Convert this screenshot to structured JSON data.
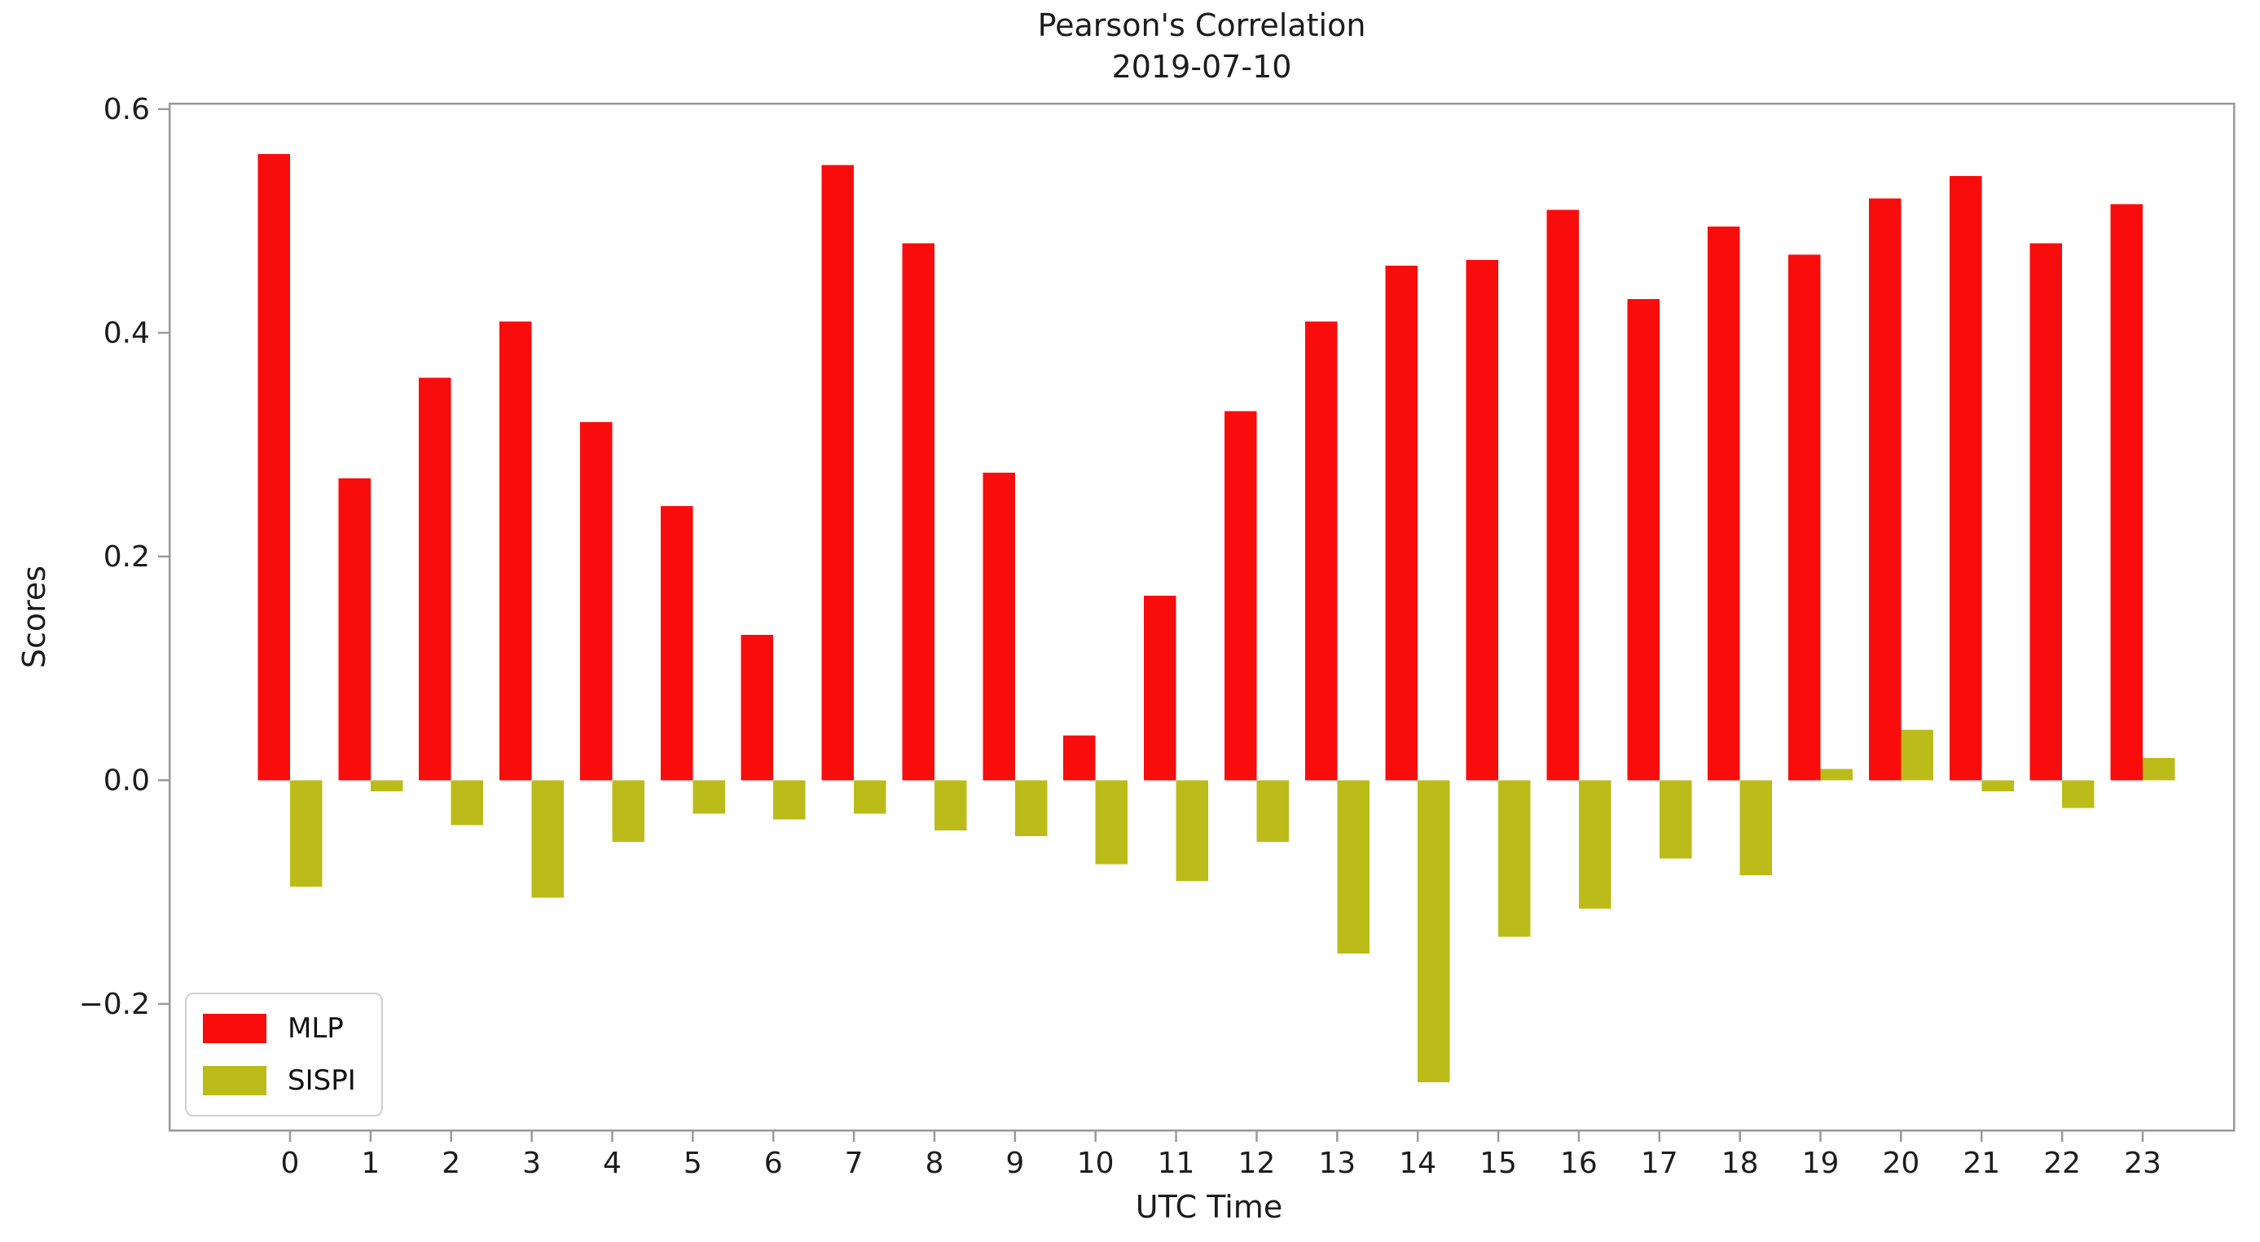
{
  "figure": {
    "title_line1": "Pearson's Correlation",
    "title_line2": "2019-07-10",
    "xlabel": "UTC Time",
    "ylabel": "Scores"
  },
  "legend": {
    "items": [
      {
        "label": "MLP",
        "color": "#f90c0c"
      },
      {
        "label": "SISPI",
        "color": "#bbbc1a"
      }
    ]
  },
  "chart_data": {
    "type": "bar",
    "title": "Pearson's Correlation 2019-07-10",
    "xlabel": "UTC Time",
    "ylabel": "Scores",
    "categories": [
      "0",
      "1",
      "2",
      "3",
      "4",
      "5",
      "6",
      "7",
      "8",
      "9",
      "10",
      "11",
      "12",
      "13",
      "14",
      "15",
      "16",
      "17",
      "18",
      "19",
      "20",
      "21",
      "22",
      "23"
    ],
    "series": [
      {
        "name": "MLP",
        "color": "#f90c0c",
        "values": [
          0.56,
          0.27,
          0.36,
          0.41,
          0.32,
          0.245,
          0.13,
          0.55,
          0.48,
          0.275,
          0.04,
          0.165,
          0.33,
          0.41,
          0.46,
          0.465,
          0.51,
          0.43,
          0.495,
          0.47,
          0.52,
          0.54,
          0.48,
          0.515
        ]
      },
      {
        "name": "SISPI",
        "color": "#bbbc1a",
        "values": [
          -0.095,
          -0.01,
          -0.04,
          -0.105,
          -0.055,
          -0.03,
          -0.035,
          -0.03,
          -0.045,
          -0.05,
          -0.075,
          -0.09,
          -0.055,
          -0.155,
          -0.27,
          -0.14,
          -0.115,
          -0.07,
          -0.085,
          0.01,
          0.045,
          -0.01,
          -0.025,
          0.02
        ]
      }
    ],
    "yticks": [
      0.6,
      0.4,
      0.2,
      0.0,
      -0.2
    ],
    "ytick_labels": [
      "0.6",
      "0.4",
      "0.2",
      "0.0",
      "−0.2"
    ],
    "ylim": [
      -0.313,
      0.605
    ],
    "grid": false,
    "legend_position": "lower left",
    "axis_color": "#999999",
    "text_color": "#1c1c1c"
  }
}
